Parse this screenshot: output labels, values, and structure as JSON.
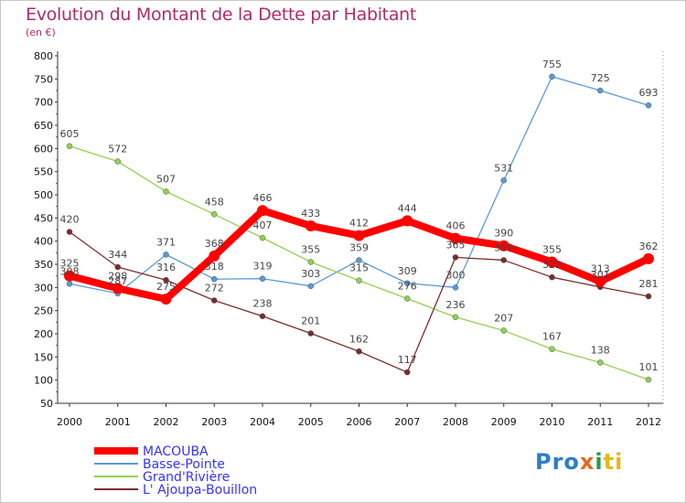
{
  "title": "Evolution du Montant de la Dette par Habitant",
  "subtitle": "(en €)",
  "logo": {
    "text": "Proxiti",
    "parts": [
      "Pro",
      "x",
      "i",
      "ti"
    ]
  },
  "chart_data": {
    "type": "line",
    "x": [
      "2000",
      "2001",
      "2002",
      "2003",
      "2004",
      "2005",
      "2006",
      "2007",
      "2008",
      "2009",
      "2010",
      "2011",
      "2012"
    ],
    "ylim": [
      50,
      800
    ],
    "yticks": [
      50,
      100,
      150,
      200,
      250,
      300,
      350,
      400,
      450,
      500,
      550,
      600,
      650,
      700,
      750,
      800
    ],
    "grid": false,
    "legend_position": "bottom-left",
    "series": [
      {
        "name": "MACOUBA",
        "color": "#ff0000",
        "values": [
          325,
          298,
          275,
          368,
          466,
          433,
          412,
          444,
          406,
          390,
          355,
          313,
          362
        ]
      },
      {
        "name": "Basse-Pointe",
        "color": "#5b9bd5",
        "values": [
          308,
          287,
          371,
          318,
          319,
          303,
          359,
          309,
          300,
          531,
          755,
          725,
          693
        ]
      },
      {
        "name": "Grand'Rivière",
        "color": "#92d050",
        "values": [
          605,
          572,
          507,
          458,
          407,
          355,
          315,
          276,
          236,
          207,
          167,
          138,
          101
        ]
      },
      {
        "name": "L' Ajoupa-Bouillon",
        "color": "#7b2c2c",
        "values": [
          420,
          344,
          316,
          272,
          238,
          201,
          162,
          117,
          365,
          359,
          322,
          301,
          281
        ]
      }
    ]
  }
}
